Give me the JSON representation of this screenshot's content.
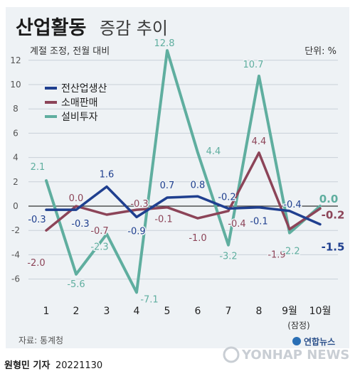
{
  "header": {
    "title_bold": "산업활동",
    "title_light": "증감 추이",
    "subtitle": "계절 조정, 전월 대비",
    "unit": "단위: %"
  },
  "footer": {
    "source": "자료: 통계청",
    "byline": "원형민 기자",
    "date": "20221130",
    "logo_text": "연합뉴스",
    "logo_wordmark": "YONHAP NEWS"
  },
  "colors": {
    "background": "#eef2f5",
    "industrial": "#1f3f8f",
    "retail": "#8c4458",
    "facility": "#5fae9f",
    "grid": "#c8d0d8",
    "axis_text": "#333333"
  },
  "chart_data": {
    "type": "line",
    "categories": [
      "1",
      "2",
      "3",
      "4",
      "5",
      "6",
      "7",
      "8",
      "9월",
      "10월"
    ],
    "category_note": "(잠정)",
    "ylim": [
      -8,
      13
    ],
    "yticks": [
      -6,
      -4,
      -2,
      0,
      2,
      4,
      6,
      8,
      10,
      12
    ],
    "grid": true,
    "legend_position": "top-left",
    "series": [
      {
        "name": "전산업생산",
        "color": "#1f3f8f",
        "values": [
          -0.3,
          -0.3,
          1.6,
          -0.9,
          0.7,
          0.8,
          -0.2,
          -0.1,
          -0.4,
          -1.5
        ],
        "labels": [
          "-0.3",
          "-0.3",
          "1.6",
          "-0.9",
          "0.7",
          "0.8",
          "-0.2",
          "-0.1",
          "-0.4",
          "-1.5"
        ]
      },
      {
        "name": "소매판매",
        "color": "#8c4458",
        "values": [
          -2.0,
          0.0,
          -0.7,
          -0.3,
          -0.1,
          -1.0,
          -0.4,
          4.4,
          -1.9,
          -0.2
        ],
        "labels": [
          "-2.0",
          "0.0",
          "-0.7",
          "-0.3",
          "-0.1",
          "-1.0",
          "-0.4",
          "4.4",
          "-1.9",
          "-0.2"
        ]
      },
      {
        "name": "설비투자",
        "color": "#5fae9f",
        "values": [
          2.1,
          -5.6,
          -2.3,
          -7.1,
          12.8,
          4.4,
          -3.2,
          10.7,
          -2.2,
          0.0
        ],
        "labels": [
          "2.1",
          "-5.6",
          "-2.3",
          "-7.1",
          "12.8",
          "4.4",
          "-3.2",
          "10.7",
          "-2.2",
          "0.0"
        ]
      }
    ]
  }
}
